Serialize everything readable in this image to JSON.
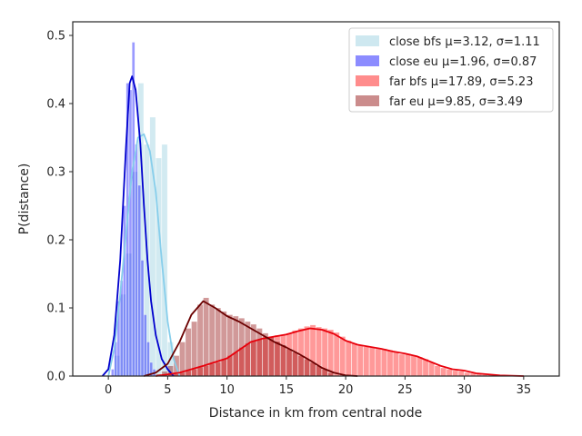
{
  "chart_data": {
    "type": "histogram",
    "xlabel": "Distance in km from central node",
    "ylabel": "P(distance)",
    "xlim": [
      -3,
      38
    ],
    "ylim": [
      0,
      0.52
    ],
    "xticks": [
      0,
      5,
      10,
      15,
      20,
      25,
      30,
      35
    ],
    "yticks": [
      0.0,
      0.1,
      0.2,
      0.3,
      0.4,
      0.5
    ],
    "xtick_labels": [
      "0",
      "5",
      "10",
      "15",
      "20",
      "25",
      "30",
      "35"
    ],
    "ytick_labels": [
      "0.0",
      "0.1",
      "0.2",
      "0.3",
      "0.4",
      "0.5"
    ],
    "grid": false,
    "legend_position": "top-right",
    "series": [
      {
        "name": "close bfs μ=3.12, σ=1.11",
        "bar_color": "#add8e6",
        "line_color": "#87ceeb",
        "bar_opacity": 0.55,
        "bin_width": 0.5,
        "bins": [
          [
            0.5,
            0.03
          ],
          [
            1.0,
            0.12
          ],
          [
            1.5,
            0.18
          ],
          [
            2.0,
            0.3
          ],
          [
            2.5,
            0.43
          ],
          [
            3.0,
            0.34
          ],
          [
            3.5,
            0.38
          ],
          [
            4.0,
            0.32
          ],
          [
            4.5,
            0.34
          ],
          [
            5.0,
            0.05
          ]
        ],
        "kde": [
          [
            0.0,
            0.0
          ],
          [
            0.5,
            0.04
          ],
          [
            1.0,
            0.12
          ],
          [
            1.5,
            0.21
          ],
          [
            2.0,
            0.3
          ],
          [
            2.5,
            0.35
          ],
          [
            3.0,
            0.355
          ],
          [
            3.5,
            0.33
          ],
          [
            4.0,
            0.27
          ],
          [
            4.5,
            0.17
          ],
          [
            5.0,
            0.08
          ],
          [
            5.5,
            0.025
          ],
          [
            6.0,
            0.0
          ]
        ]
      },
      {
        "name": "close eu μ=1.96, σ=0.87",
        "bar_color": "#0000ff",
        "line_color": "#0000cd",
        "bar_opacity": 0.4,
        "bin_width": 0.25,
        "bins": [
          [
            0.25,
            0.01
          ],
          [
            0.5,
            0.05
          ],
          [
            0.75,
            0.11
          ],
          [
            1.0,
            0.14
          ],
          [
            1.25,
            0.25
          ],
          [
            1.5,
            0.43
          ],
          [
            1.75,
            0.42
          ],
          [
            2.0,
            0.49
          ],
          [
            2.25,
            0.34
          ],
          [
            2.5,
            0.28
          ],
          [
            2.75,
            0.17
          ],
          [
            3.0,
            0.09
          ],
          [
            3.25,
            0.05
          ],
          [
            3.5,
            0.02
          ],
          [
            3.75,
            0.01
          ]
        ],
        "kde": [
          [
            -0.5,
            0.0
          ],
          [
            0.0,
            0.01
          ],
          [
            0.5,
            0.06
          ],
          [
            1.0,
            0.17
          ],
          [
            1.5,
            0.34
          ],
          [
            1.8,
            0.43
          ],
          [
            2.0,
            0.44
          ],
          [
            2.3,
            0.42
          ],
          [
            2.7,
            0.34
          ],
          [
            3.0,
            0.25
          ],
          [
            3.3,
            0.17
          ],
          [
            3.6,
            0.11
          ],
          [
            4.0,
            0.06
          ],
          [
            4.5,
            0.025
          ],
          [
            5.0,
            0.01
          ],
          [
            5.5,
            0.0
          ]
        ]
      },
      {
        "name": "far bfs μ=17.89, σ=5.23",
        "bar_color": "#ff0000",
        "line_color": "#e8000b",
        "bar_opacity": 0.4,
        "bin_width": 0.5,
        "bins": [
          [
            4.5,
            0.003
          ],
          [
            5.0,
            0.003
          ],
          [
            5.5,
            0.003
          ],
          [
            6.0,
            0.005
          ],
          [
            6.5,
            0.008
          ],
          [
            7.0,
            0.01
          ],
          [
            7.5,
            0.013
          ],
          [
            8.0,
            0.015
          ],
          [
            8.5,
            0.018
          ],
          [
            9.0,
            0.02
          ],
          [
            9.5,
            0.025
          ],
          [
            10.0,
            0.03
          ],
          [
            10.5,
            0.035
          ],
          [
            11.0,
            0.042
          ],
          [
            11.5,
            0.048
          ],
          [
            12.0,
            0.051
          ],
          [
            12.5,
            0.054
          ],
          [
            13.0,
            0.056
          ],
          [
            13.5,
            0.058
          ],
          [
            14.0,
            0.06
          ],
          [
            14.5,
            0.061
          ],
          [
            15.0,
            0.063
          ],
          [
            15.5,
            0.067
          ],
          [
            16.0,
            0.07
          ],
          [
            16.5,
            0.073
          ],
          [
            17.0,
            0.075
          ],
          [
            17.5,
            0.072
          ],
          [
            18.0,
            0.07
          ],
          [
            18.5,
            0.068
          ],
          [
            19.0,
            0.064
          ],
          [
            19.5,
            0.058
          ],
          [
            20.0,
            0.052
          ],
          [
            20.5,
            0.048
          ],
          [
            21.0,
            0.045
          ],
          [
            21.5,
            0.043
          ],
          [
            22.0,
            0.042
          ],
          [
            22.5,
            0.04
          ],
          [
            23.0,
            0.04
          ],
          [
            23.5,
            0.038
          ],
          [
            24.0,
            0.035
          ],
          [
            24.5,
            0.032
          ],
          [
            25.0,
            0.033
          ],
          [
            25.5,
            0.03
          ],
          [
            26.0,
            0.028
          ],
          [
            26.5,
            0.025
          ],
          [
            27.0,
            0.02
          ],
          [
            27.5,
            0.015
          ],
          [
            28.0,
            0.012
          ],
          [
            28.5,
            0.01
          ],
          [
            29.0,
            0.008
          ],
          [
            29.5,
            0.007
          ],
          [
            30.0,
            0.005
          ],
          [
            30.5,
            0.004
          ],
          [
            31.0,
            0.003
          ],
          [
            31.5,
            0.002
          ],
          [
            32.0,
            0.002
          ]
        ],
        "kde": [
          [
            4.0,
            0.0
          ],
          [
            6.0,
            0.005
          ],
          [
            8.0,
            0.015
          ],
          [
            10.0,
            0.026
          ],
          [
            11.0,
            0.038
          ],
          [
            12.0,
            0.05
          ],
          [
            13.0,
            0.055
          ],
          [
            14.0,
            0.058
          ],
          [
            15.0,
            0.061
          ],
          [
            16.0,
            0.066
          ],
          [
            17.0,
            0.07
          ],
          [
            18.0,
            0.068
          ],
          [
            19.0,
            0.062
          ],
          [
            20.0,
            0.052
          ],
          [
            21.0,
            0.046
          ],
          [
            22.0,
            0.043
          ],
          [
            23.0,
            0.04
          ],
          [
            24.0,
            0.036
          ],
          [
            25.0,
            0.033
          ],
          [
            26.0,
            0.029
          ],
          [
            27.0,
            0.022
          ],
          [
            28.0,
            0.015
          ],
          [
            29.0,
            0.01
          ],
          [
            30.0,
            0.008
          ],
          [
            31.0,
            0.004
          ],
          [
            33.0,
            0.001
          ],
          [
            35.0,
            0.0
          ]
        ]
      },
      {
        "name": "far eu μ=9.85, σ=3.49",
        "bar_color": "#8b0000",
        "line_color": "#6b0000",
        "bar_opacity": 0.4,
        "bin_width": 0.5,
        "bins": [
          [
            4.0,
            0.003
          ],
          [
            4.5,
            0.007
          ],
          [
            5.0,
            0.015
          ],
          [
            5.5,
            0.03
          ],
          [
            6.0,
            0.05
          ],
          [
            6.5,
            0.07
          ],
          [
            7.0,
            0.08
          ],
          [
            7.5,
            0.105
          ],
          [
            8.0,
            0.115
          ],
          [
            8.5,
            0.105
          ],
          [
            9.0,
            0.1
          ],
          [
            9.5,
            0.095
          ],
          [
            10.0,
            0.09
          ],
          [
            10.5,
            0.088
          ],
          [
            11.0,
            0.085
          ],
          [
            11.5,
            0.08
          ],
          [
            12.0,
            0.076
          ],
          [
            12.5,
            0.07
          ],
          [
            13.0,
            0.063
          ],
          [
            13.5,
            0.057
          ],
          [
            14.0,
            0.051
          ],
          [
            14.5,
            0.046
          ],
          [
            15.0,
            0.04
          ],
          [
            15.5,
            0.035
          ],
          [
            16.0,
            0.03
          ],
          [
            16.5,
            0.025
          ],
          [
            17.0,
            0.02
          ],
          [
            17.5,
            0.015
          ],
          [
            18.0,
            0.01
          ],
          [
            18.5,
            0.005
          ]
        ],
        "kde": [
          [
            3.0,
            0.0
          ],
          [
            4.0,
            0.005
          ],
          [
            5.0,
            0.018
          ],
          [
            6.0,
            0.05
          ],
          [
            7.0,
            0.09
          ],
          [
            8.0,
            0.11
          ],
          [
            9.0,
            0.1
          ],
          [
            10.0,
            0.088
          ],
          [
            11.0,
            0.08
          ],
          [
            12.0,
            0.07
          ],
          [
            13.0,
            0.06
          ],
          [
            14.0,
            0.05
          ],
          [
            15.0,
            0.042
          ],
          [
            16.0,
            0.033
          ],
          [
            17.0,
            0.023
          ],
          [
            18.0,
            0.012
          ],
          [
            19.0,
            0.005
          ],
          [
            20.0,
            0.001
          ],
          [
            21.0,
            0.0
          ]
        ]
      }
    ]
  }
}
